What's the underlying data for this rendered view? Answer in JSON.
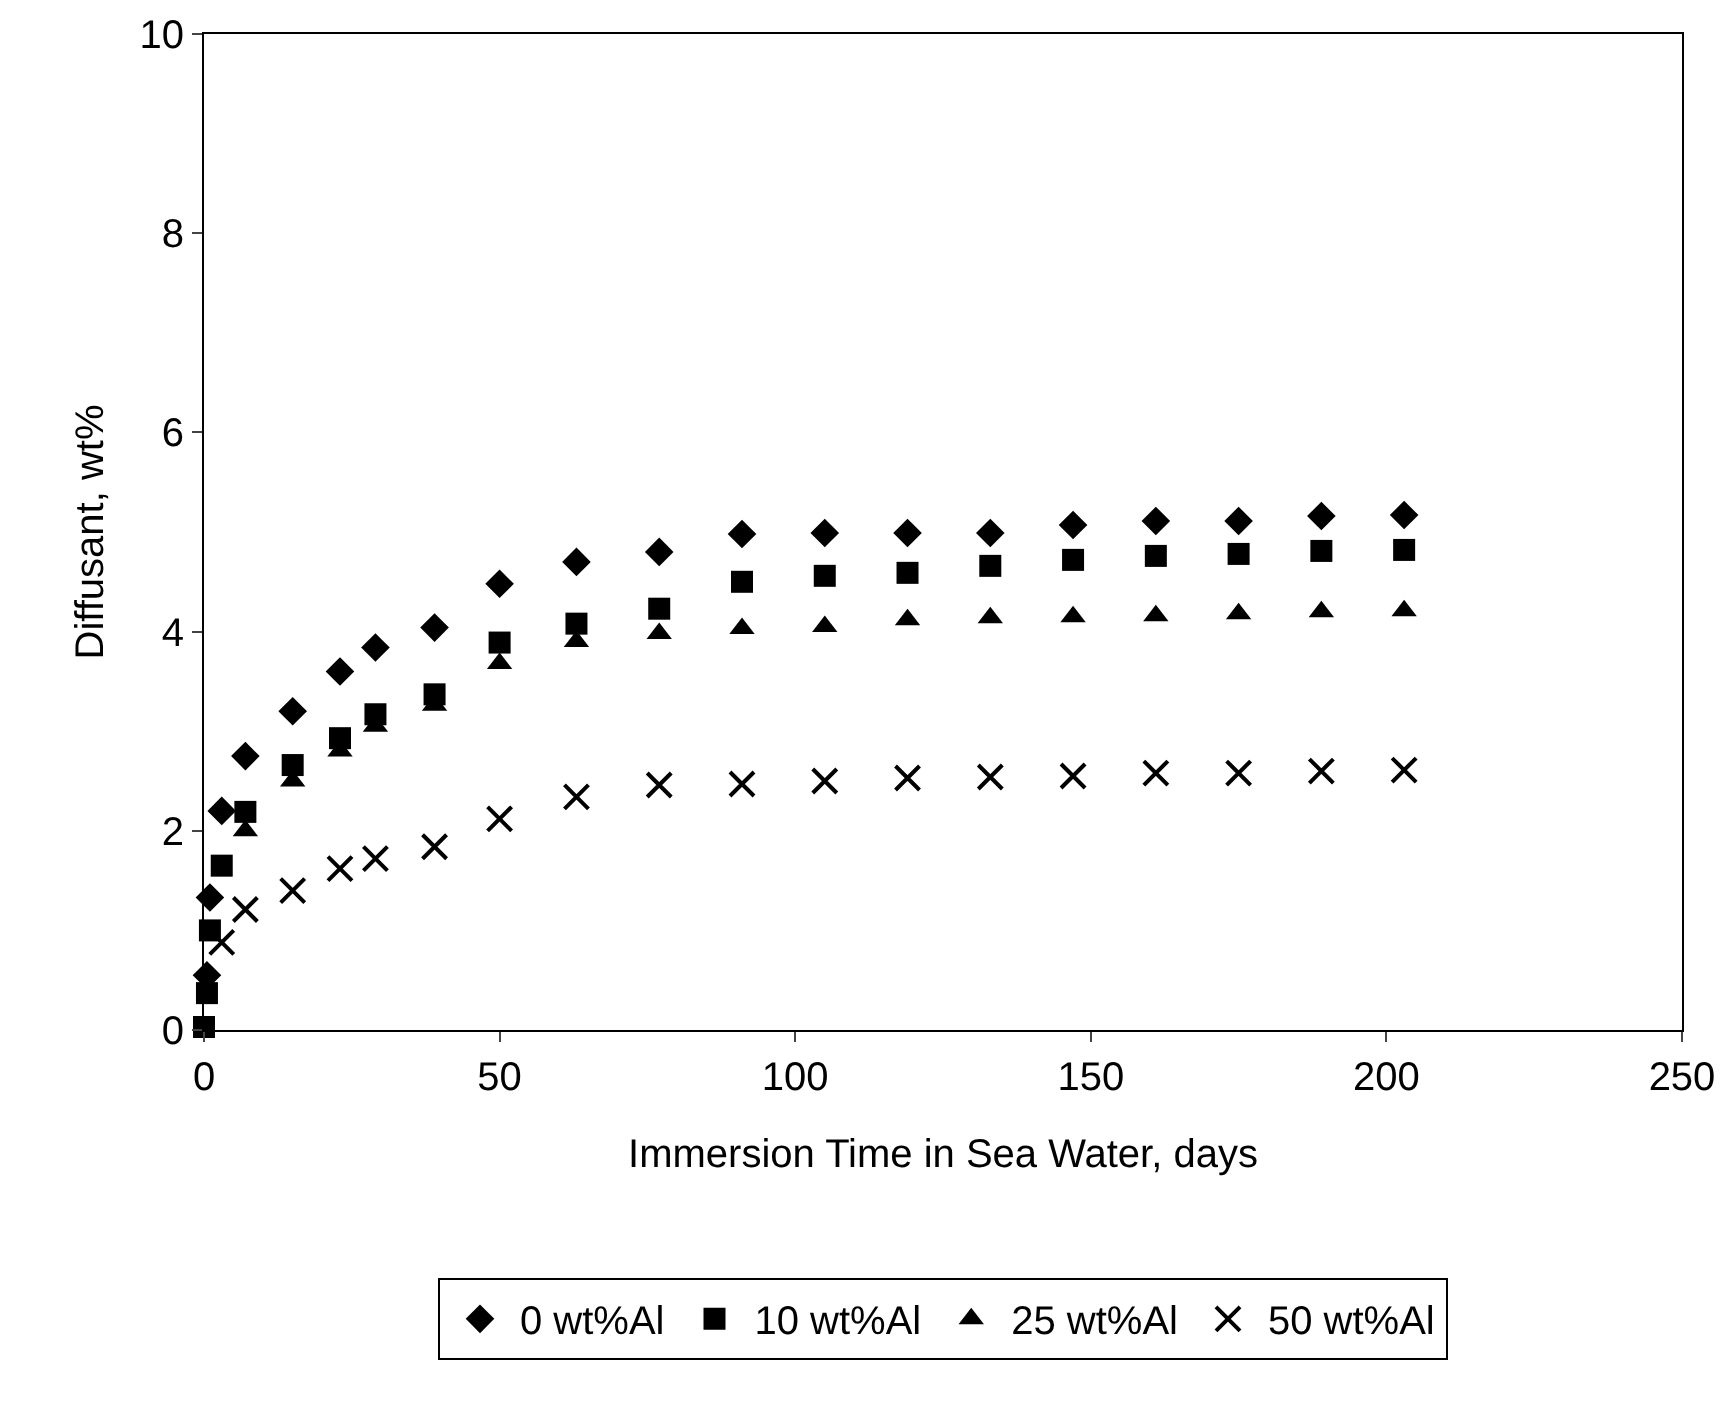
{
  "chart_data": {
    "type": "scatter",
    "xlabel": "Immersion Time in Sea Water, days",
    "ylabel": "Diffusant, wt%",
    "x": [
      0,
      0.5,
      1,
      3,
      7,
      15,
      23,
      29,
      39,
      50,
      63,
      77,
      91,
      105,
      119,
      133,
      147,
      161,
      175,
      189,
      203
    ],
    "series": [
      {
        "name": "0 wt%Al",
        "color": "#000000",
        "marker": "diamond",
        "values": [
          null,
          0.55,
          1.33,
          2.2,
          2.75,
          3.2,
          3.6,
          3.84,
          4.04,
          4.48,
          4.7,
          4.8,
          4.98,
          4.99,
          4.99,
          4.99,
          5.07,
          5.11,
          5.11,
          5.16,
          5.17
        ]
      },
      {
        "name": "10 wt%Al",
        "color": "#000000",
        "marker": "square",
        "values": [
          0.03,
          0.37,
          1.0,
          1.65,
          2.19,
          2.66,
          2.93,
          3.17,
          3.37,
          3.89,
          4.08,
          4.23,
          4.5,
          4.56,
          4.59,
          4.66,
          4.72,
          4.76,
          4.78,
          4.81,
          4.82
        ]
      },
      {
        "name": "25 wt%Al",
        "color": "#000000",
        "marker": "triangle",
        "values": [
          null,
          null,
          null,
          null,
          2.0,
          2.5,
          2.8,
          3.05,
          3.26,
          3.68,
          3.9,
          3.98,
          4.03,
          4.05,
          4.12,
          4.14,
          4.15,
          4.16,
          4.18,
          4.2,
          4.21
        ]
      },
      {
        "name": "50 wt%Al",
        "color": "#000000",
        "marker": "cross",
        "values": [
          null,
          null,
          null,
          0.88,
          1.21,
          1.4,
          1.62,
          1.72,
          1.84,
          2.12,
          2.34,
          2.46,
          2.47,
          2.5,
          2.53,
          2.54,
          2.55,
          2.58,
          2.58,
          2.6,
          2.61
        ]
      }
    ],
    "xlim": [
      0,
      250
    ],
    "xticks": [
      0,
      50,
      100,
      150,
      200,
      250
    ],
    "ylim": [
      0,
      10
    ],
    "yticks": [
      0,
      2,
      4,
      6,
      8,
      10
    ],
    "grid": false,
    "legend": "bottom"
  }
}
